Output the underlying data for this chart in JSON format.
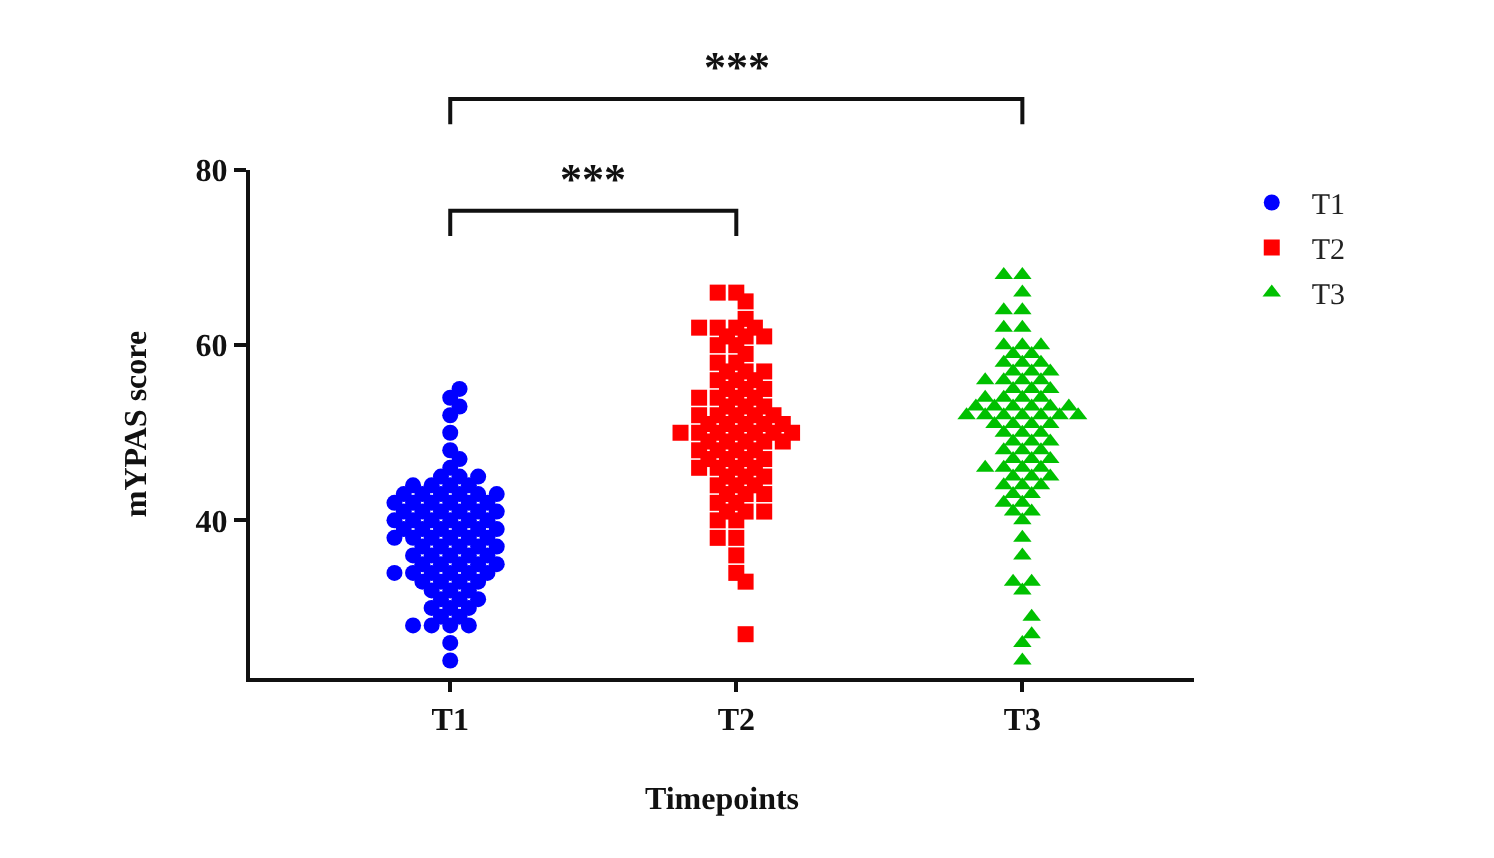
{
  "chart_data": {
    "type": "scatter",
    "xlabel": "Timepoints",
    "ylabel": "mYPAS score",
    "categories": [
      "T1",
      "T2",
      "T3"
    ],
    "ylim": [
      22,
      80
    ],
    "yticks": [
      40,
      60,
      80
    ],
    "grid": false,
    "legend": "top right",
    "annotations": [
      "***",
      "***"
    ],
    "series": [
      {
        "name": "T1",
        "color": "#0000ff",
        "marker": "circle",
        "x": [
          "T1",
          "T1",
          "T1",
          "T1",
          "T1",
          "T1",
          "T1",
          "T1",
          "T1",
          "T1",
          "T1",
          "T1",
          "T1",
          "T1",
          "T1",
          "T1",
          "T1",
          "T1",
          "T1",
          "T1",
          "T1",
          "T1",
          "T1",
          "T1",
          "T1",
          "T1",
          "T1",
          "T1",
          "T1",
          "T1",
          "T1",
          "T1",
          "T1",
          "T1",
          "T1",
          "T1",
          "T1",
          "T1",
          "T1",
          "T1",
          "T1",
          "T1",
          "T1",
          "T1",
          "T1",
          "T1",
          "T1",
          "T1",
          "T1",
          "T1",
          "T1",
          "T1",
          "T1",
          "T1",
          "T1",
          "T1",
          "T1",
          "T1",
          "T1",
          "T1",
          "T1",
          "T1",
          "T1",
          "T1",
          "T1",
          "T1",
          "T1",
          "T1",
          "T1",
          "T1",
          "T1",
          "T1",
          "T1",
          "T1",
          "T1",
          "T1",
          "T1",
          "T1",
          "T1",
          "T1",
          "T1",
          "T1",
          "T1",
          "T1",
          "T1",
          "T1",
          "T1",
          "T1",
          "T1",
          "T1",
          "T1",
          "T1",
          "T1"
        ],
        "values": [
          55,
          54,
          53,
          52,
          50,
          48,
          47,
          46,
          45,
          45,
          45,
          44,
          44,
          44,
          44,
          43,
          43,
          43,
          43,
          43,
          42,
          42,
          42,
          42,
          42,
          42,
          41,
          41,
          41,
          41,
          41,
          40,
          40,
          40,
          40,
          40,
          40,
          39,
          39,
          39,
          39,
          39,
          38,
          38,
          38,
          38,
          38,
          38,
          37,
          37,
          37,
          37,
          36,
          36,
          36,
          36,
          36,
          35,
          35,
          35,
          35,
          34,
          34,
          34,
          34,
          34,
          34,
          33,
          33,
          33,
          33,
          32,
          32,
          32,
          31,
          31,
          31,
          30,
          30,
          30,
          29,
          29,
          28,
          28,
          28,
          28,
          26,
          24,
          39,
          41,
          37,
          35,
          43
        ]
      },
      {
        "name": "T2",
        "color": "#ff0000",
        "marker": "square",
        "x": [
          "T2",
          "T2",
          "T2",
          "T2",
          "T2",
          "T2",
          "T2",
          "T2",
          "T2",
          "T2",
          "T2",
          "T2",
          "T2",
          "T2",
          "T2",
          "T2",
          "T2",
          "T2",
          "T2",
          "T2",
          "T2",
          "T2",
          "T2",
          "T2",
          "T2",
          "T2",
          "T2",
          "T2",
          "T2",
          "T2",
          "T2",
          "T2",
          "T2",
          "T2",
          "T2",
          "T2",
          "T2",
          "T2",
          "T2",
          "T2",
          "T2",
          "T2",
          "T2",
          "T2",
          "T2",
          "T2",
          "T2",
          "T2",
          "T2",
          "T2",
          "T2",
          "T2",
          "T2",
          "T2",
          "T2",
          "T2",
          "T2",
          "T2",
          "T2",
          "T2",
          "T2",
          "T2",
          "T2",
          "T2",
          "T2",
          "T2",
          "T2",
          "T2",
          "T2",
          "T2",
          "T2",
          "T2",
          "T2",
          "T2",
          "T2",
          "T2",
          "T2",
          "T2",
          "T2",
          "T2",
          "T2",
          "T2",
          "T2",
          "T2",
          "T2",
          "T2",
          "T2",
          "T2"
        ],
        "values": [
          66,
          66,
          65,
          63,
          62,
          62,
          62,
          62,
          61,
          61,
          61,
          60,
          60,
          59,
          58,
          58,
          57,
          57,
          57,
          56,
          56,
          56,
          55,
          55,
          55,
          54,
          54,
          54,
          54,
          53,
          53,
          53,
          52,
          52,
          52,
          52,
          51,
          51,
          51,
          51,
          51,
          50,
          50,
          50,
          50,
          50,
          50,
          49,
          49,
          49,
          49,
          49,
          48,
          48,
          48,
          48,
          47,
          47,
          47,
          47,
          46,
          46,
          46,
          46,
          45,
          45,
          45,
          44,
          44,
          44,
          43,
          43,
          43,
          42,
          42,
          41,
          41,
          41,
          40,
          40,
          38,
          38,
          36,
          34,
          33,
          27,
          50,
          52
        ]
      },
      {
        "name": "T3",
        "color": "#00c000",
        "marker": "triangle",
        "x": [
          "T3",
          "T3",
          "T3",
          "T3",
          "T3",
          "T3",
          "T3",
          "T3",
          "T3",
          "T3",
          "T3",
          "T3",
          "T3",
          "T3",
          "T3",
          "T3",
          "T3",
          "T3",
          "T3",
          "T3",
          "T3",
          "T3",
          "T3",
          "T3",
          "T3",
          "T3",
          "T3",
          "T3",
          "T3",
          "T3",
          "T3",
          "T3",
          "T3",
          "T3",
          "T3",
          "T3",
          "T3",
          "T3",
          "T3",
          "T3",
          "T3",
          "T3",
          "T3",
          "T3",
          "T3",
          "T3",
          "T3",
          "T3",
          "T3",
          "T3",
          "T3",
          "T3",
          "T3",
          "T3",
          "T3",
          "T3",
          "T3",
          "T3",
          "T3",
          "T3",
          "T3",
          "T3",
          "T3",
          "T3",
          "T3",
          "T3",
          "T3",
          "T3",
          "T3",
          "T3",
          "T3",
          "T3",
          "T3",
          "T3",
          "T3",
          "T3",
          "T3",
          "T3",
          "T3",
          "T3",
          "T3",
          "T3",
          "T3",
          "T3"
        ],
        "values": [
          68,
          68,
          66,
          64,
          64,
          62,
          62,
          60,
          60,
          60,
          59,
          59,
          58,
          58,
          58,
          57,
          57,
          57,
          56,
          56,
          56,
          56,
          55,
          55,
          55,
          54,
          54,
          54,
          54,
          53,
          53,
          53,
          53,
          53,
          52,
          52,
          52,
          52,
          52,
          52,
          51,
          51,
          51,
          51,
          50,
          50,
          50,
          49,
          49,
          49,
          48,
          48,
          48,
          47,
          47,
          47,
          46,
          46,
          46,
          46,
          45,
          45,
          45,
          44,
          44,
          44,
          43,
          43,
          42,
          42,
          41,
          41,
          40,
          38,
          36,
          33,
          33,
          32,
          29,
          27,
          26,
          24,
          52,
          53
        ]
      }
    ]
  }
}
